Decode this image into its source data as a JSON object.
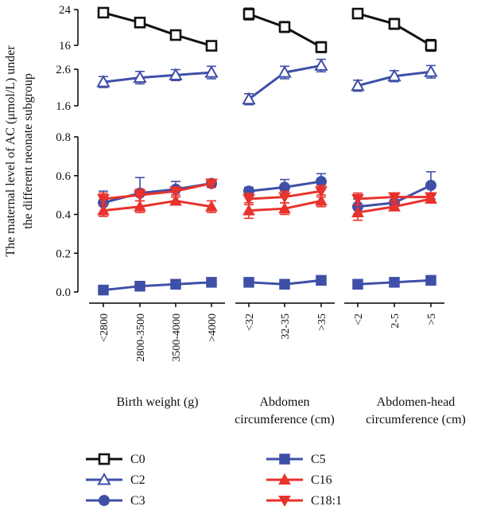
{
  "chart_data": {
    "type": "line",
    "ylabel_lines": [
      "The maternal level of AC (μmol/L) under",
      "the different neonate subgroup"
    ],
    "groups": [
      {
        "label_lines": [
          "Birth weight (g)"
        ],
        "categories": [
          "<2800",
          "2800-3500",
          "3500-4000",
          ">4000"
        ]
      },
      {
        "label_lines": [
          "Abdomen",
          "circumference (cm)"
        ],
        "categories": [
          "<32",
          "32-35",
          ">35"
        ]
      },
      {
        "label_lines": [
          "Abdomen-head",
          "circumference (cm)"
        ],
        "categories": [
          "<2",
          "2-5",
          ">5"
        ]
      }
    ],
    "panels": [
      {
        "id": "top",
        "ylim": [
          16,
          24
        ],
        "ticks": [
          "24",
          "16"
        ],
        "series": [
          "C0"
        ]
      },
      {
        "id": "mid",
        "ylim": [
          1.6,
          2.6
        ],
        "ticks": [
          "2.6",
          "1.6"
        ],
        "series": [
          "C2"
        ]
      },
      {
        "id": "bottom",
        "ylim": [
          0,
          0.8
        ],
        "ticks": [
          "0.8",
          "0.6",
          "0.4",
          "0.2",
          "0.0"
        ],
        "series": [
          "C3",
          "C5",
          "C16",
          "C18:1"
        ]
      }
    ],
    "series": [
      {
        "name": "C0",
        "panel": "top",
        "color": "#111111",
        "marker": "square-open",
        "values": [
          [
            23.3,
            21.1,
            18.3,
            15.9
          ],
          [
            23.0,
            20.1,
            15.6
          ],
          [
            23.1,
            20.8,
            16.0
          ]
        ],
        "errors": [
          [
            1.0,
            0.7,
            0.6,
            0.6
          ],
          [
            1.3,
            1.2,
            1.2
          ],
          [
            0.6,
            1.2,
            1.3
          ]
        ]
      },
      {
        "name": "C2",
        "panel": "mid",
        "color": "#3f4fa8",
        "marker": "triangle-up-open",
        "values": [
          [
            2.25,
            2.37,
            2.44,
            2.51
          ],
          [
            1.78,
            2.51,
            2.7
          ],
          [
            2.15,
            2.41,
            2.53
          ]
        ],
        "errors": [
          [
            0.15,
            0.17,
            0.15,
            0.17
          ],
          [
            0.15,
            0.17,
            0.17
          ],
          [
            0.15,
            0.15,
            0.17
          ]
        ]
      },
      {
        "name": "C3",
        "panel": "bottom",
        "color": "#3f4fa8",
        "marker": "circle-filled",
        "values": [
          [
            0.46,
            0.51,
            0.53,
            0.56
          ],
          [
            0.52,
            0.54,
            0.57
          ],
          [
            0.44,
            0.46,
            0.55
          ]
        ],
        "errors": [
          [
            0.06,
            0.08,
            0.04,
            0.02
          ],
          [
            0.02,
            0.04,
            0.04
          ],
          [
            0.04,
            0.03,
            0.07
          ]
        ]
      },
      {
        "name": "C5",
        "panel": "bottom",
        "color": "#3f4fa8",
        "marker": "square-filled",
        "values": [
          [
            0.01,
            0.03,
            0.04,
            0.05
          ],
          [
            0.05,
            0.04,
            0.06
          ],
          [
            0.04,
            0.05,
            0.06
          ]
        ],
        "errors": [
          [
            0.02,
            0.02,
            0.02,
            0.02
          ],
          [
            0.02,
            0.02,
            0.02
          ],
          [
            0.02,
            0.02,
            0.02
          ]
        ]
      },
      {
        "name": "C16",
        "panel": "bottom",
        "color": "#e8322c",
        "marker": "triangle-up-filled",
        "values": [
          [
            0.42,
            0.44,
            0.47,
            0.44
          ],
          [
            0.42,
            0.43,
            0.47
          ],
          [
            0.41,
            0.44,
            0.48
          ]
        ],
        "errors": [
          [
            0.03,
            0.03,
            0.02,
            0.03
          ],
          [
            0.04,
            0.03,
            0.03
          ],
          [
            0.04,
            0.02,
            0.02
          ]
        ]
      },
      {
        "name": "C18:1",
        "panel": "bottom",
        "color": "#e8322c",
        "marker": "triangle-down-filled",
        "values": [
          [
            0.48,
            0.5,
            0.52,
            0.56
          ],
          [
            0.48,
            0.49,
            0.52
          ],
          [
            0.48,
            0.49,
            0.49
          ]
        ],
        "errors": [
          [
            0.03,
            0.03,
            0.02,
            0.02
          ],
          [
            0.03,
            0.03,
            0.03
          ],
          [
            0.03,
            0.02,
            0.02
          ]
        ]
      }
    ],
    "legend": {
      "placement": "bottom",
      "columns": [
        [
          "C0",
          "C2",
          "C3"
        ],
        [
          "C5",
          "C16",
          "C18:1"
        ]
      ]
    }
  }
}
